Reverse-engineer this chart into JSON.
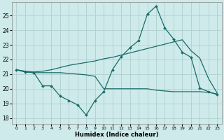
{
  "xlabel": "Humidex (Indice chaleur)",
  "bg_color": "#ceeaea",
  "grid_color": "#afd0d0",
  "line_color": "#1a6b6b",
  "xlim": [
    -0.5,
    23.5
  ],
  "ylim": [
    17.6,
    25.9
  ],
  "yticks": [
    18,
    19,
    20,
    21,
    22,
    23,
    24,
    25
  ],
  "xticks": [
    0,
    1,
    2,
    3,
    4,
    5,
    6,
    7,
    8,
    9,
    10,
    11,
    12,
    13,
    14,
    15,
    16,
    17,
    18,
    19,
    20,
    21,
    22,
    23
  ],
  "line1_x": [
    0,
    1,
    2,
    3,
    4,
    5,
    6,
    7,
    8,
    9,
    10,
    11,
    12,
    13,
    14,
    15,
    16,
    17,
    18,
    19,
    20,
    21,
    22,
    23
  ],
  "line1_y": [
    21.3,
    21.2,
    21.15,
    21.2,
    21.3,
    21.45,
    21.6,
    21.7,
    21.8,
    21.9,
    22.05,
    22.15,
    22.3,
    22.45,
    22.6,
    22.75,
    22.9,
    23.05,
    23.2,
    23.35,
    22.6,
    22.1,
    20.7,
    19.7
  ],
  "line2_x": [
    0,
    1,
    2,
    3,
    4,
    5,
    6,
    7,
    8,
    9,
    10,
    11,
    12,
    13,
    14,
    15,
    16,
    17,
    18,
    19,
    20,
    21,
    22,
    23
  ],
  "line2_y": [
    21.3,
    21.15,
    21.1,
    20.2,
    20.2,
    19.5,
    19.2,
    18.9,
    18.2,
    19.2,
    19.8,
    21.3,
    22.2,
    22.8,
    23.3,
    25.1,
    25.65,
    24.15,
    23.4,
    22.5,
    22.15,
    20.05,
    19.8,
    19.6
  ],
  "line3_x": [
    0,
    1,
    2,
    3,
    4,
    5,
    6,
    7,
    8,
    9,
    10,
    11,
    12,
    13,
    14,
    15,
    16,
    17,
    18,
    19,
    20,
    21,
    22,
    23
  ],
  "line3_y": [
    21.3,
    21.15,
    21.1,
    21.1,
    21.1,
    21.1,
    21.05,
    21.0,
    20.95,
    20.85,
    20.0,
    20.0,
    20.0,
    20.0,
    20.0,
    20.0,
    19.9,
    19.85,
    19.8,
    19.8,
    19.8,
    19.8,
    19.75,
    19.65
  ]
}
